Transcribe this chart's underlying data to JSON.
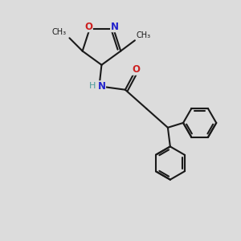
{
  "bg_color": "#dcdcdc",
  "bond_color": "#1a1a1a",
  "N_color": "#2222cc",
  "N_H_color": "#4a9a9a",
  "O_color": "#cc2020",
  "line_width": 1.5,
  "font_size_atom": 8.5,
  "font_size_methyl": 7.0,
  "xlim": [
    0,
    10
  ],
  "ylim": [
    0,
    10
  ]
}
